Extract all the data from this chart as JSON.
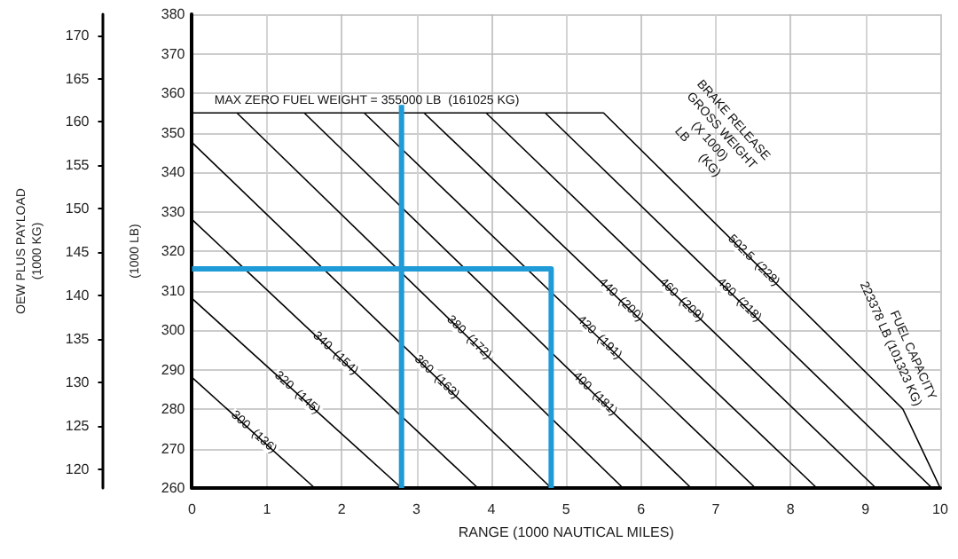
{
  "chart_data": {
    "type": "line",
    "xlabel": "RANGE (1000 NAUTICAL MILES)",
    "ylabel": "(1000 LB)",
    "y2label": "OEW PLUS PAYLOAD\n(1000 KG)",
    "xlim": [
      0,
      10
    ],
    "xticks": [
      0,
      1,
      2,
      3,
      4,
      5,
      6,
      7,
      8,
      9,
      10
    ],
    "ylim": [
      260,
      380
    ],
    "yticks": [
      260,
      270,
      280,
      290,
      300,
      310,
      320,
      330,
      340,
      350,
      360,
      370,
      380
    ],
    "y2lim": [
      117.9,
      172.4
    ],
    "y2ticks": [
      120,
      125,
      130,
      135,
      140,
      145,
      150,
      155,
      160,
      165,
      170
    ],
    "grid": true,
    "line_style": "solid",
    "annotations": [
      {
        "text": "MAX ZERO FUEL WEIGHT = 355000 LB  (161025 KG)",
        "x": 0.3,
        "y": 355
      },
      "BRAKE RELEASE\nGROSS WEIGHT\n(X 1000)\nLB      (KG)",
      {
        "text": "FUEL CAPACITY\n223378 LB (101323 KG)",
        "x": 9.5,
        "y": 280
      }
    ],
    "series": [
      {
        "name": "300  (136)",
        "color": "#000000",
        "x": [
          0,
          1.64
        ],
        "values": [
          288,
          260
        ]
      },
      {
        "name": "320  (145)",
        "color": "#000000",
        "x": [
          0,
          2.8
        ],
        "values": [
          308,
          260
        ]
      },
      {
        "name": "340  (154)",
        "color": "#000000",
        "x": [
          0,
          3.82
        ],
        "values": [
          328,
          260
        ]
      },
      {
        "name": "360  (163)",
        "color": "#000000",
        "x": [
          0,
          4.8
        ],
        "values": [
          347.5,
          260
        ]
      },
      {
        "name": "380  (172)",
        "color": "#000000",
        "x": [
          0.6,
          5.76
        ],
        "values": [
          355,
          260
        ]
      },
      {
        "name": "400  (181)",
        "color": "#000000",
        "x": [
          1.5,
          6.67
        ],
        "values": [
          355,
          260
        ]
      },
      {
        "name": "420  (191)",
        "color": "#000000",
        "x": [
          2.3,
          7.53
        ],
        "values": [
          355,
          260
        ]
      },
      {
        "name": "440  (200)",
        "color": "#000000",
        "x": [
          3.1,
          8.35
        ],
        "values": [
          355,
          260
        ]
      },
      {
        "name": "460  (209)",
        "color": "#000000",
        "x": [
          3.93,
          9.14
        ],
        "values": [
          355,
          260
        ]
      },
      {
        "name": "480  (218)",
        "color": "#000000",
        "x": [
          4.72,
          9.89
        ],
        "values": [
          355,
          260
        ]
      },
      {
        "name": "502.5  (228)",
        "color": "#000000",
        "x": [
          0,
          5.5,
          9.5,
          10
        ],
        "values": [
          355,
          355,
          280,
          260
        ]
      },
      {
        "color": "#1f9bd7",
        "x": [
          0,
          4.8,
          4.8
        ],
        "values": [
          315.5,
          315.5,
          260
        ]
      },
      {
        "color": "#1f9bd7",
        "x": [
          2.8,
          2.8
        ],
        "values": [
          260,
          357
        ]
      }
    ]
  }
}
